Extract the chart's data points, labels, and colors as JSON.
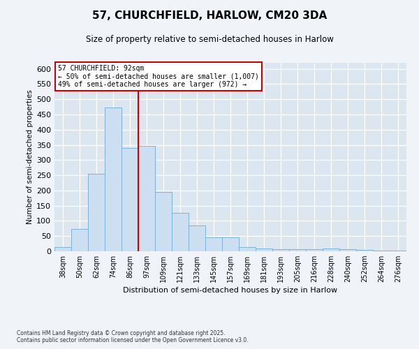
{
  "title": "57, CHURCHFIELD, HARLOW, CM20 3DA",
  "subtitle": "Size of property relative to semi-detached houses in Harlow",
  "xlabel": "Distribution of semi-detached houses by size in Harlow",
  "ylabel": "Number of semi-detached properties",
  "categories": [
    "38sqm",
    "50sqm",
    "62sqm",
    "74sqm",
    "86sqm",
    "97sqm",
    "109sqm",
    "121sqm",
    "133sqm",
    "145sqm",
    "157sqm",
    "169sqm",
    "181sqm",
    "193sqm",
    "205sqm",
    "216sqm",
    "228sqm",
    "240sqm",
    "252sqm",
    "264sqm",
    "276sqm"
  ],
  "values": [
    14,
    74,
    254,
    474,
    340,
    347,
    196,
    126,
    86,
    46,
    46,
    14,
    10,
    8,
    6,
    8,
    10,
    6,
    4,
    2,
    3
  ],
  "bar_color": "#ccdff0",
  "bar_edge_color": "#7ab4d8",
  "vline_color": "#cc0000",
  "vline_x_index": 5,
  "annotation_title": "57 CHURCHFIELD: 92sqm",
  "annotation_line1": "← 50% of semi-detached houses are smaller (1,007)",
  "annotation_line2": "49% of semi-detached houses are larger (972) →",
  "annotation_box_edge": "#cc0000",
  "ylim": [
    0,
    620
  ],
  "yticks": [
    0,
    50,
    100,
    150,
    200,
    250,
    300,
    350,
    400,
    450,
    500,
    550,
    600
  ],
  "footer": "Contains HM Land Registry data © Crown copyright and database right 2025.\nContains public sector information licensed under the Open Government Licence v3.0.",
  "fig_bg": "#f0f4f8",
  "plot_bg": "#dce6f1",
  "grid_color": "#ffffff",
  "title_fontsize": 11,
  "subtitle_fontsize": 8.5,
  "ylabel_fontsize": 7.5,
  "xlabel_fontsize": 8,
  "ytick_fontsize": 8,
  "xtick_fontsize": 7
}
